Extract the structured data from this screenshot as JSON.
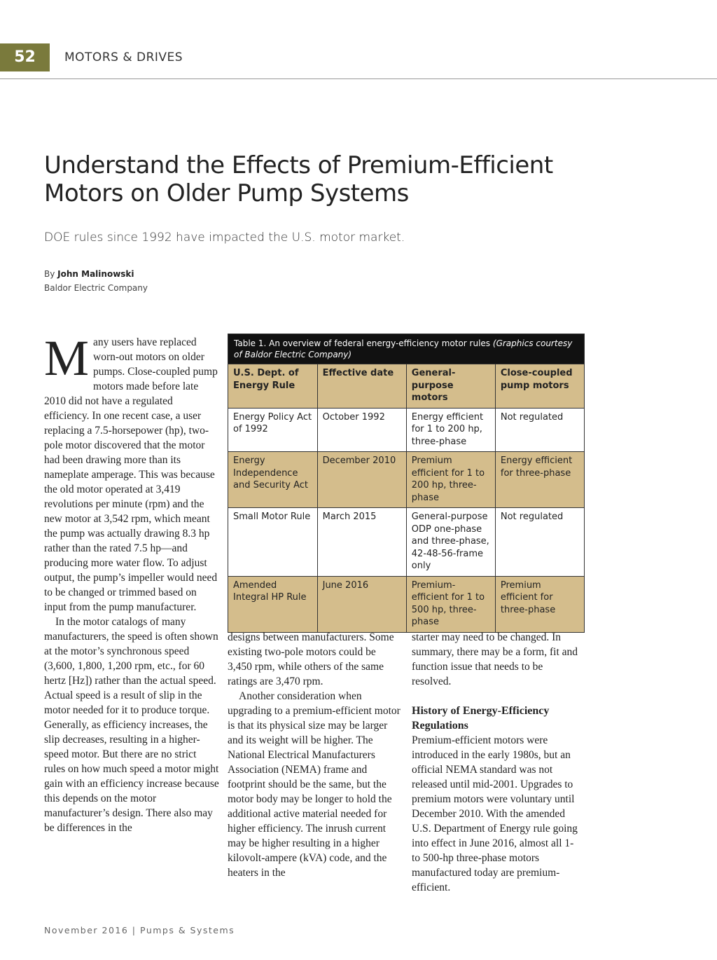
{
  "header": {
    "page_number": "52",
    "section": "MOTORS & DRIVES"
  },
  "article": {
    "title": "Understand the Effects of Premium-Efficient Motors on Older Pump Systems",
    "subtitle": "DOE rules since 1992 have impacted the U.S. motor market.",
    "byline_prefix": "By",
    "author": "John Malinowski",
    "affiliation": "Baldor Electric Company"
  },
  "table": {
    "caption": "Table 1. An overview of federal energy-efficiency motor rules",
    "caption_credit": "(Graphics courtesy of Baldor Electric Company)",
    "headers": [
      "U.S. Dept. of Energy Rule",
      "Effective date",
      "General-purpose motors",
      "Close-coupled pump motors"
    ],
    "rows": [
      [
        "Energy Policy Act of 1992",
        "October 1992",
        "Energy efficient for 1 to 200 hp, three-phase",
        "Not regulated"
      ],
      [
        "Energy Independence and Security Act",
        "December 2010",
        "Premium efficient for 1 to 200 hp, three-phase",
        "Energy efficient for three-phase"
      ],
      [
        "Small Motor Rule",
        "March 2015",
        "General-purpose ODP one-phase and three-phase, 42-48-56-frame only",
        "Not regulated"
      ],
      [
        "Amended Integral HP Rule",
        "June 2016",
        "Premium-efficient for 1 to 500 hp, three-phase",
        "Premium efficient for three-phase"
      ]
    ]
  },
  "body": {
    "drop_cap": "M",
    "column_1": [
      "any users have replaced worn-out motors on older pumps. Close-coupled pump motors made before late 2010 did not have a regulated efficiency. In one recent case, a user replacing a 7.5-horsepower (hp), two-pole motor discovered that the motor had been drawing more than its nameplate amperage. This was because the old motor operated at 3,419 revolutions per minute (rpm) and the new motor at 3,542 rpm, which meant the pump was actually drawing 8.3 hp rather than the rated 7.5 hp—and producing more water flow. To adjust output, the pump’s impeller would need to be changed or trimmed based on input from the pump manufacturer.",
      "In the motor catalogs of many manufacturers, the speed is often shown at the motor’s synchronous speed (3,600, 1,800, 1,200 rpm, etc., for 60 hertz [Hz]) rather than the actual speed. Actual speed is a result of slip in the motor needed for it to produce torque. Generally, as efficiency increases, the slip decreases, resulting in a higher-speed motor. But there are no strict rules on how much speed a motor might gain with an efficiency increase because this depends on the motor manufacturer’s design. There also may be differences in the"
    ],
    "column_2": [
      "designs between manufacturers. Some existing two-pole motors could be 3,450 rpm, while others of the same ratings are 3,470 rpm.",
      "Another consideration when upgrading to a premium-efficient motor is that its physical size may be larger and its weight will be higher. The National Electrical Manufacturers Association (NEMA) frame and footprint should be the same, but the motor body may be longer to hold the additional active material needed for higher efficiency. The inrush current may be higher resulting in a higher kilovolt-ampere (kVA) code, and the heaters in the"
    ],
    "column_3": [
      "starter may need to be changed. In summary, there may be a form, fit and function issue that needs to be resolved."
    ],
    "heading": "History of Energy-Efficiency Regulations",
    "column_3_after_heading": [
      "Premium-efficient motors were introduced in the early 1980s, but an official NEMA standard was not released until mid-2001. Upgrades to premium motors were voluntary until December 2010. With the amended U.S. Department of Energy rule going into effect in June 2016, almost all 1- to 500-hp three-phase motors manufactured today are premium-efficient."
    ]
  },
  "footer": {
    "date": "November 2016",
    "separator": "|",
    "publication": "Pumps & Systems"
  }
}
